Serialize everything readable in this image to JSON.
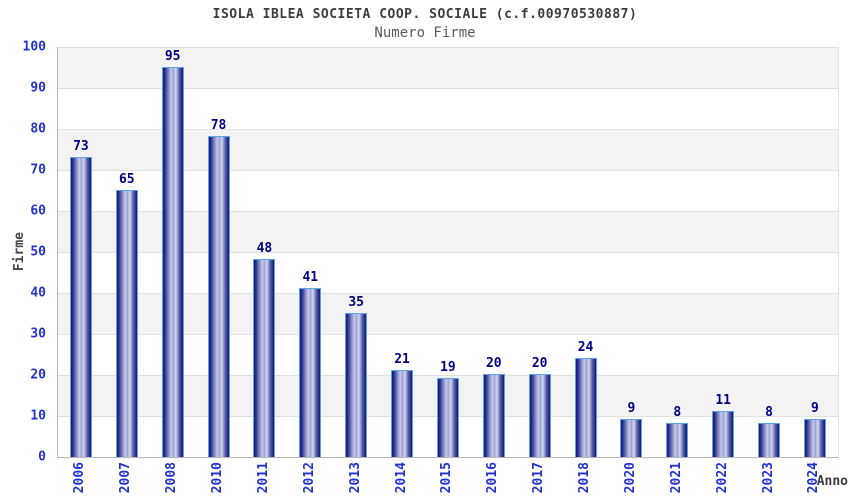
{
  "chart_data": {
    "type": "bar",
    "title": "ISOLA IBLEA SOCIETA COOP. SOCIALE (c.f.00970530887)",
    "subtitle": "Numero Firme",
    "xlabel": "Anno",
    "ylabel": "Firme",
    "categories": [
      "2006",
      "2007",
      "2008",
      "2010",
      "2011",
      "2012",
      "2013",
      "2014",
      "2015",
      "2016",
      "2017",
      "2018",
      "2020",
      "2021",
      "2022",
      "2023",
      "2024"
    ],
    "values": [
      73,
      65,
      95,
      78,
      48,
      41,
      35,
      21,
      19,
      20,
      20,
      24,
      9,
      8,
      11,
      8,
      9
    ],
    "ylim": [
      0,
      100
    ],
    "y_ticks": [
      0,
      10,
      20,
      30,
      40,
      50,
      60,
      70,
      80,
      90,
      100
    ],
    "grid": "horizontal gridlines every 10 with alternating gray/white bands",
    "legend": "none",
    "colors": {
      "bar_dark": "#14176e",
      "bar_light": "#c7cceb",
      "bar_border": "#58a6e8",
      "axis_tick_label": "#2233cc",
      "value_label": "#000080",
      "band_gray": "#f3f3f3",
      "band_white": "#ffffff",
      "gridline": "#e0e0e0",
      "title": "#3c3c3c",
      "subtitle": "#5a5a5a"
    }
  }
}
